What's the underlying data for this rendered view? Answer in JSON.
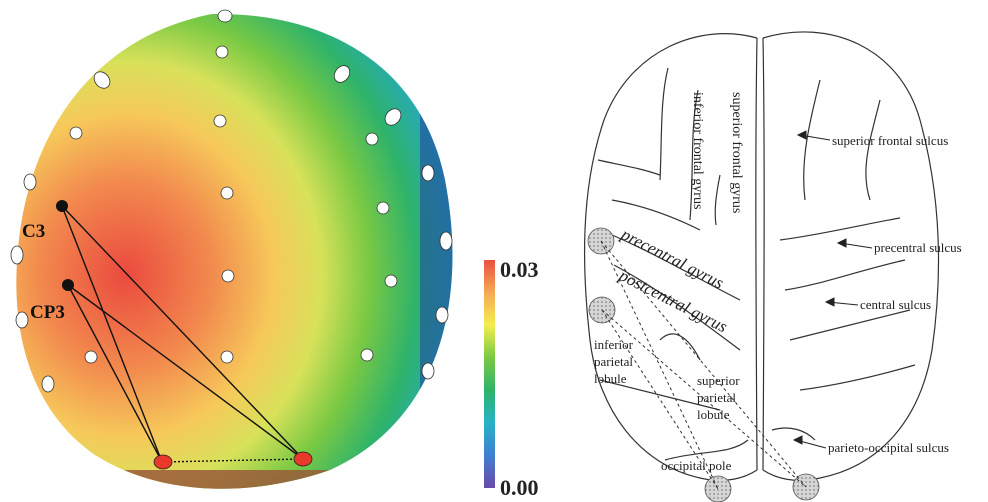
{
  "colors": {
    "electrode_white": "#ffffff",
    "electrode_black": "#111111",
    "electrode_red": "#e8392b",
    "connection": "#111111",
    "brain_outline": "#333333",
    "region_fill": "#c8c8c8"
  },
  "topomap": {
    "electrodes_labeled": [
      {
        "id": "c3",
        "label": "C3"
      },
      {
        "id": "cp3",
        "label": "CP3"
      }
    ],
    "colorbar": {
      "max_label": "0.03",
      "min_label": "0.00",
      "max": 0.03,
      "min": 0.0,
      "stops": [
        "#6a4aa8",
        "#3f7fd0",
        "#25b3c6",
        "#2fb36a",
        "#7ac943",
        "#f2ee50",
        "#f6a955",
        "#ec4f42"
      ]
    }
  },
  "brain": {
    "vertical_labels": {
      "inferior_frontal_gyrus": "inferior frontal gyrus",
      "superior_frontal_gyrus": "superior frontal gyrus"
    },
    "gyrus_labels": {
      "precentral_gyrus": "precentral gyrus",
      "postcentral_gyrus": "postcentral gyrus"
    },
    "lobule_labels": {
      "inferior_parietal": [
        "inferior",
        "parietal",
        "lobule"
      ],
      "superior_parietal": [
        "superior",
        "parietal",
        "lobule"
      ]
    },
    "pointer_labels": {
      "superior_frontal_sulcus": "superior frontal sulcus",
      "precentral_sulcus": "precentral sulcus",
      "central_sulcus": "central sulcus",
      "parieto_occipital_sulcus": "parieto-occipital sulcus"
    },
    "occipital_pole": "occipital pole"
  }
}
